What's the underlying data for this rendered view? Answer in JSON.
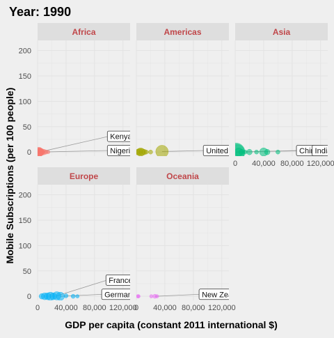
{
  "chart_data": {
    "type": "scatter",
    "title": "Year: 1990",
    "xlabel": "GDP per capita (constant 2011 international $)",
    "ylabel": "Mobile Subscriptions (per 100 people)",
    "xlim": [
      0,
      130000
    ],
    "ylim": [
      -8,
      220
    ],
    "x_ticks": [
      0,
      40000,
      80000,
      120000
    ],
    "x_tick_labels": [
      "0",
      "40,000",
      "80,000",
      "120,000"
    ],
    "y_ticks": [
      0,
      50,
      100,
      150,
      200
    ],
    "y_tick_labels": [
      "0",
      "50",
      "100",
      "150",
      "200"
    ],
    "grid": true,
    "legend": "none",
    "panels": [
      {
        "name": "Africa",
        "color": "#f8766d",
        "points": [
          {
            "x": 800,
            "y": 0,
            "size": 4
          },
          {
            "x": 1500,
            "y": 0,
            "size": 7
          },
          {
            "x": 2300,
            "y": 0,
            "size": 5
          },
          {
            "x": 3000,
            "y": 0,
            "size": 6
          },
          {
            "x": 4200,
            "y": 0,
            "size": 4
          },
          {
            "x": 5500,
            "y": 0,
            "size": 5
          },
          {
            "x": 7000,
            "y": 0,
            "size": 3
          },
          {
            "x": 9000,
            "y": 0,
            "size": 4
          },
          {
            "x": 12000,
            "y": 0,
            "size": 3
          },
          {
            "x": 15000,
            "y": 0,
            "size": 2.5
          },
          {
            "x": 2000,
            "y": 0,
            "size": 6
          }
        ],
        "labels": [
          {
            "text": "Kenya",
            "x": 2600,
            "y": 0,
            "lx": 100000,
            "ly": 31
          },
          {
            "text": "Nigeria",
            "x": 4200,
            "y": 0,
            "lx": 100000,
            "ly": 3
          }
        ]
      },
      {
        "name": "Americas",
        "color": "#a3a500",
        "points": [
          {
            "x": 2000,
            "y": 0,
            "size": 4
          },
          {
            "x": 4000,
            "y": 0,
            "size": 5
          },
          {
            "x": 6000,
            "y": 0,
            "size": 6
          },
          {
            "x": 8000,
            "y": 0,
            "size": 5
          },
          {
            "x": 11000,
            "y": 0,
            "size": 4
          },
          {
            "x": 14000,
            "y": 0,
            "size": 3
          },
          {
            "x": 20000,
            "y": 0,
            "size": 3
          },
          {
            "x": 36000,
            "y": 1,
            "size": 9
          }
        ],
        "labels": [
          {
            "text": "United States",
            "x": 36000,
            "y": 1,
            "lx": 96000,
            "ly": 3
          }
        ]
      },
      {
        "name": "Asia",
        "color": "#00bf7d",
        "points": [
          {
            "x": 1000,
            "y": 0,
            "size": 13
          },
          {
            "x": 2500,
            "y": 0,
            "size": 11
          },
          {
            "x": 5000,
            "y": 0,
            "size": 6
          },
          {
            "x": 9000,
            "y": 0,
            "size": 4
          },
          {
            "x": 14000,
            "y": 0,
            "size": 3
          },
          {
            "x": 20000,
            "y": 0,
            "size": 4
          },
          {
            "x": 30000,
            "y": 0,
            "size": 3
          },
          {
            "x": 40000,
            "y": 0,
            "size": 6
          },
          {
            "x": 45000,
            "y": 0,
            "size": 4
          },
          {
            "x": 60000,
            "y": 0,
            "size": 3
          }
        ],
        "labels": [
          {
            "text": "China",
            "x": 1000,
            "y": 0,
            "lx": 88000,
            "ly": 3
          },
          {
            "text": "India",
            "x": 2500,
            "y": 0,
            "lx": 110000,
            "ly": 3
          }
        ]
      },
      {
        "name": "Europe",
        "color": "#00b0f6",
        "points": [
          {
            "x": 6000,
            "y": 0,
            "size": 4
          },
          {
            "x": 10000,
            "y": 0,
            "size": 5
          },
          {
            "x": 14000,
            "y": 0,
            "size": 5
          },
          {
            "x": 18000,
            "y": 0,
            "size": 6
          },
          {
            "x": 22000,
            "y": 0,
            "size": 5
          },
          {
            "x": 27000,
            "y": 1,
            "size": 6
          },
          {
            "x": 32000,
            "y": 0,
            "size": 6
          },
          {
            "x": 40000,
            "y": 1,
            "size": 3
          },
          {
            "x": 50000,
            "y": 0,
            "size": 3
          },
          {
            "x": 56000,
            "y": 0,
            "size": 2.5
          }
        ],
        "labels": [
          {
            "text": "France",
            "x": 27000,
            "y": 1,
            "lx": 98000,
            "ly": 32
          },
          {
            "text": "Germany",
            "x": 32000,
            "y": 0,
            "lx": 92000,
            "ly": 4
          }
        ]
      },
      {
        "name": "Oceania",
        "color": "#e76bf3",
        "points": [
          {
            "x": 2000,
            "y": 0,
            "size": 2.5
          },
          {
            "x": 3000,
            "y": 0,
            "size": 2.5
          },
          {
            "x": 21000,
            "y": 0,
            "size": 2.5
          },
          {
            "x": 26000,
            "y": 0,
            "size": 3
          },
          {
            "x": 29000,
            "y": 0,
            "size": 2.5
          }
        ],
        "labels": [
          {
            "text": "New Zealand",
            "x": 26000,
            "y": 0,
            "lx": 90000,
            "ly": 4
          }
        ]
      }
    ]
  }
}
